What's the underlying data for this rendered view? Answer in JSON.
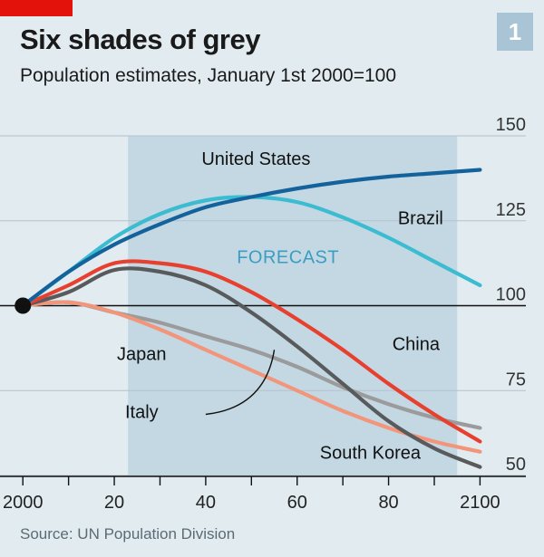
{
  "header": {
    "title": "Six shades of grey",
    "subtitle": "Population estimates, January 1st 2000=100",
    "badge": "1"
  },
  "footer": {
    "source": "Source: UN Population Division"
  },
  "colors": {
    "background": "#e1ebf0",
    "forecast_band": "#c3d8e3",
    "united_states": "#14629c",
    "brazil": "#3bbcd0",
    "china": "#e8402e",
    "south_korea": "#595a5b",
    "japan": "#9b9b9b",
    "italy": "#f2957a"
  },
  "chart_data": {
    "type": "line",
    "title": "Six shades of grey",
    "subtitle": "Population estimates, January 1st 2000=100",
    "x_ticks": [
      "2000",
      "20",
      "40",
      "60",
      "80",
      "2100"
    ],
    "x_tick_values": [
      2000,
      2020,
      2040,
      2060,
      2080,
      2100
    ],
    "y_ticks": [
      "50",
      "75",
      "100",
      "125",
      "150"
    ],
    "y_tick_values": [
      50,
      75,
      100,
      125,
      150
    ],
    "xlim": [
      1995,
      2114
    ],
    "ylim": [
      50,
      150
    ],
    "y_axis_side": "right",
    "baseline": 100,
    "forecast_start": 2023,
    "forecast_label": "FORECAST",
    "series": [
      {
        "key": "united_states",
        "name": "United States",
        "x": [
          2000,
          2010,
          2020,
          2030,
          2040,
          2050,
          2060,
          2070,
          2080,
          2090,
          2100
        ],
        "y": [
          100,
          110,
          118,
          124,
          129,
          132,
          134.5,
          136.5,
          138,
          139,
          140
        ]
      },
      {
        "key": "brazil",
        "name": "Brazil",
        "x": [
          2000,
          2010,
          2020,
          2030,
          2040,
          2050,
          2060,
          2070,
          2080,
          2090,
          2100
        ],
        "y": [
          100,
          110,
          120,
          127,
          131,
          132,
          130.5,
          126,
          120,
          113,
          106
        ]
      },
      {
        "key": "china",
        "name": "China",
        "x": [
          2000,
          2010,
          2020,
          2030,
          2040,
          2050,
          2060,
          2070,
          2080,
          2090,
          2100
        ],
        "y": [
          100,
          106,
          112.5,
          112.5,
          110,
          104,
          96,
          87,
          77,
          68,
          60
        ]
      },
      {
        "key": "south_korea",
        "name": "South Korea",
        "x": [
          2000,
          2010,
          2020,
          2030,
          2040,
          2050,
          2060,
          2070,
          2080,
          2090,
          2100
        ],
        "y": [
          100,
          104,
          110.5,
          110,
          106,
          98,
          88,
          77,
          66,
          58,
          52.5
        ]
      },
      {
        "key": "japan",
        "name": "Japan",
        "x": [
          2000,
          2010,
          2020,
          2030,
          2040,
          2050,
          2060,
          2070,
          2080,
          2090,
          2100
        ],
        "y": [
          100,
          101,
          98,
          95,
          91,
          87,
          82,
          76,
          71,
          67,
          64
        ]
      },
      {
        "key": "italy",
        "name": "Italy",
        "x": [
          2000,
          2010,
          2020,
          2030,
          2040,
          2050,
          2060,
          2070,
          2080,
          2090,
          2100
        ],
        "y": [
          100,
          101,
          98,
          93,
          87,
          81,
          75,
          69,
          64,
          60,
          57
        ]
      }
    ],
    "labels": [
      {
        "key": "united_states",
        "text": "United States",
        "x": 2051,
        "y": 141.5
      },
      {
        "key": "brazil",
        "text": "Brazil",
        "x": 2087,
        "y": 124
      },
      {
        "key": "forecast",
        "text": "FORECAST",
        "x": 2058,
        "y": 112.5
      },
      {
        "key": "china",
        "text": "China",
        "x": 2086,
        "y": 87
      },
      {
        "key": "japan",
        "text": "Japan",
        "x": 2026,
        "y": 84
      },
      {
        "key": "italy",
        "text": "Italy",
        "x": 2026,
        "y": 67
      },
      {
        "key": "south_korea",
        "text": "South Korea",
        "x": 2076,
        "y": 55
      }
    ],
    "annotation_line": {
      "from": {
        "x": 2040,
        "y": 68
      },
      "control": {
        "x": 2053,
        "y": 70
      },
      "to": {
        "x": 2055,
        "y": 87
      }
    }
  }
}
